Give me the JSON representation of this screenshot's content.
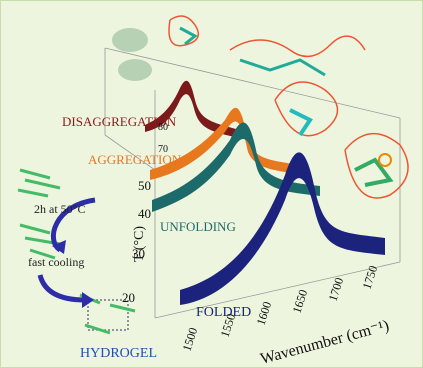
{
  "labels": {
    "disaggregation": "DISAGGREGATION",
    "aggregation": "AGGREGATION",
    "unfolding": "UNFOLDING",
    "folded": "FOLDED",
    "hydrogel": "HYDROGEL",
    "heating": "2h at 50°C",
    "cooling": "fast cooling"
  },
  "axes": {
    "t_label": "T (°C)",
    "w_label": "Wavenumber (cm⁻¹)",
    "t_ticks": [
      "80",
      "70",
      "50",
      "40",
      "30",
      "20"
    ],
    "w_ticks": [
      "1500",
      "1550",
      "1600",
      "1650",
      "1700",
      "1750"
    ]
  }
}
